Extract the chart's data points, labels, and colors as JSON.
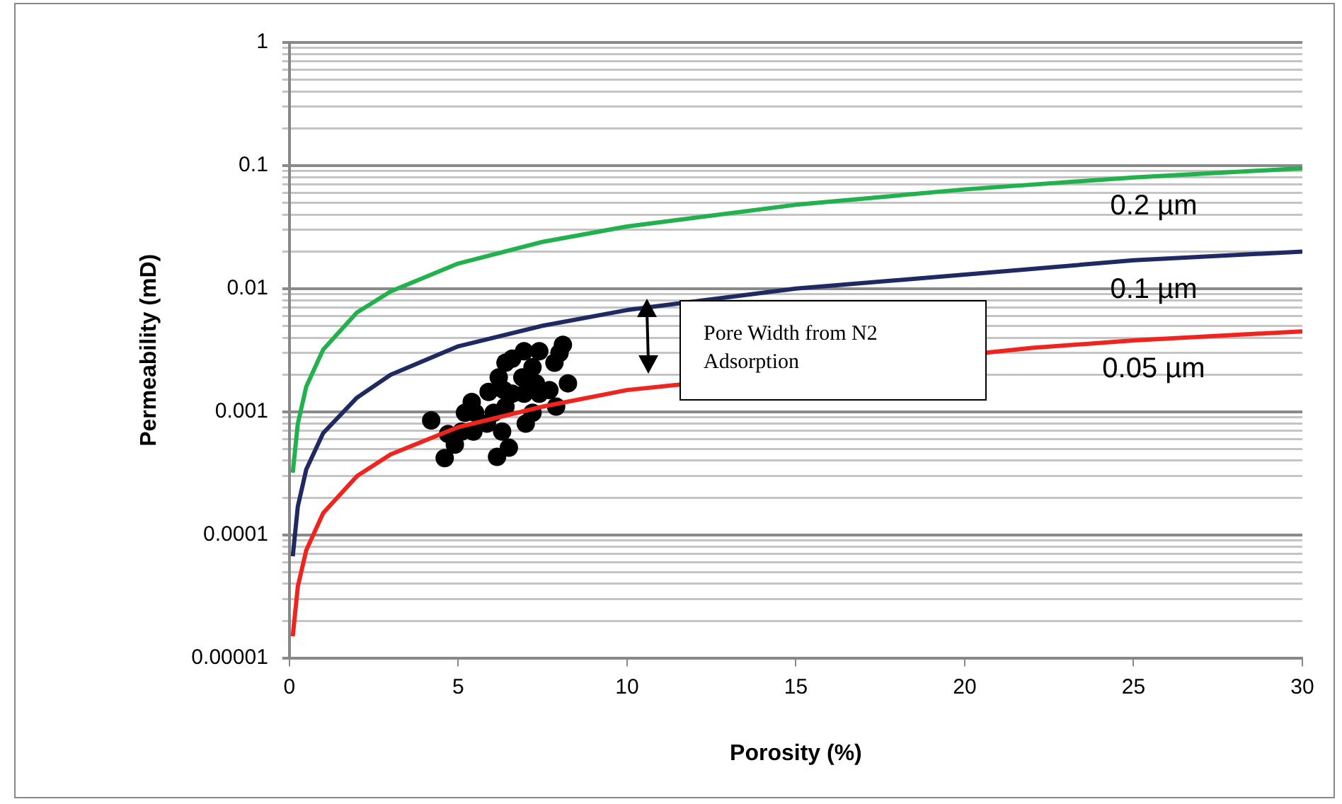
{
  "chart_data": {
    "type": "line",
    "xlabel": "Porosity (%)",
    "ylabel": "Permeability (mD)",
    "log": "y",
    "grid": "y",
    "legend": false,
    "xlim": [
      0,
      30
    ],
    "xticks": [
      0,
      5,
      10,
      15,
      20,
      25,
      30
    ],
    "ylim": [
      1e-05,
      1
    ],
    "yticks": [
      {
        "value": 1e-05,
        "label": "0.00001"
      },
      {
        "value": 2e-05,
        "label": null
      },
      {
        "value": 3e-05,
        "label": null
      },
      {
        "value": 4e-05,
        "label": null
      },
      {
        "value": 5e-05,
        "label": null
      },
      {
        "value": 6e-05,
        "label": null
      },
      {
        "value": 7e-05,
        "label": null
      },
      {
        "value": 8e-05,
        "label": null
      },
      {
        "value": 9e-05,
        "label": null
      },
      0.0001,
      {
        "value": 0.0002,
        "label": null
      },
      {
        "value": 0.0003,
        "label": null
      },
      {
        "value": 0.0004,
        "label": null
      },
      {
        "value": 0.0005,
        "label": null
      },
      {
        "value": 0.0006,
        "label": null
      },
      {
        "value": 0.0007,
        "label": null
      },
      {
        "value": 0.0008,
        "label": null
      },
      {
        "value": 0.0009,
        "label": null
      },
      0.001,
      {
        "value": 0.002,
        "label": null
      },
      {
        "value": 0.003,
        "label": null
      },
      {
        "value": 0.004,
        "label": null
      },
      {
        "value": 0.005,
        "label": null
      },
      {
        "value": 0.006,
        "label": null
      },
      {
        "value": 0.007,
        "label": null
      },
      {
        "value": 0.008,
        "label": null
      },
      {
        "value": 0.009,
        "label": null
      },
      0.01,
      {
        "value": 0.02,
        "label": null
      },
      {
        "value": 0.03,
        "label": null
      },
      {
        "value": 0.04,
        "label": null
      },
      {
        "value": 0.05,
        "label": null
      },
      {
        "value": 0.06,
        "label": null
      },
      {
        "value": 0.07,
        "label": null
      },
      {
        "value": 0.08,
        "label": null
      },
      {
        "value": 0.09,
        "label": null
      },
      0.1,
      {
        "value": 0.2,
        "label": null
      },
      {
        "value": 0.3,
        "label": null
      },
      {
        "value": 0.4,
        "label": null
      },
      {
        "value": 0.5,
        "label": null
      },
      {
        "value": 0.6,
        "label": null
      },
      {
        "value": 0.7,
        "label": null
      },
      {
        "value": 0.8,
        "label": null
      },
      {
        "value": 0.9,
        "label": null
      },
      1
    ],
    "annotations": [
      "Pore Width from N2 Adsorption"
    ],
    "series": [
      {
        "name": "0.2 µm",
        "color": "#22b14c",
        "x": [
          0.1,
          0.25,
          0.5,
          1,
          2,
          3,
          5,
          7.5,
          10,
          15,
          20,
          25,
          30
        ],
        "values": [
          0.00032,
          0.0008,
          0.0016,
          0.0032,
          0.0064,
          0.0095,
          0.016,
          0.024,
          0.032,
          0.048,
          0.064,
          0.08,
          0.095
        ]
      },
      {
        "name": "0.1 µm",
        "color": "#1f2a63",
        "x": [
          0.1,
          0.25,
          0.5,
          1,
          2,
          3,
          5,
          7.5,
          10,
          15,
          20,
          25,
          30
        ],
        "values": [
          6.7e-05,
          0.00017,
          0.00034,
          0.00067,
          0.0013,
          0.002,
          0.0034,
          0.005,
          0.0067,
          0.01,
          0.013,
          0.017,
          0.02
        ]
      },
      {
        "name": "0.05 µm",
        "color": "#f0241e",
        "x": [
          0.1,
          0.25,
          0.5,
          1,
          2,
          3,
          5,
          7.5,
          10,
          22,
          25,
          30
        ],
        "values": [
          1.5e-05,
          3.8e-05,
          7.5e-05,
          0.00015,
          0.0003,
          0.00045,
          0.00075,
          0.0011,
          0.0015,
          0.0033,
          0.0038,
          0.0045
        ]
      },
      {
        "type": "scatter",
        "color": "#000000",
        "marker": "circle",
        "x": [
          4.2,
          4.6,
          4.9,
          4.7,
          5.2,
          5.4,
          5.5,
          5.45,
          5.9,
          5.85,
          6.15,
          6.5,
          6.3,
          6.2,
          6.4,
          6.6,
          6.95,
          7.4,
          7.2,
          6.95,
          7.0,
          6.6,
          7.7,
          7.9,
          8.25,
          7.85,
          8.0,
          8.1,
          7.3,
          7.4,
          6.9,
          6.4,
          6.05,
          5.1,
          6.35,
          7.2
        ],
        "values": [
          0.00085,
          0.00042,
          0.00054,
          0.00066,
          0.00098,
          0.0012,
          0.00098,
          0.00069,
          0.00145,
          0.0008,
          0.00043,
          0.00051,
          0.00069,
          0.0019,
          0.0025,
          0.0027,
          0.0031,
          0.0031,
          0.0023,
          0.0014,
          0.0008,
          0.0014,
          0.0015,
          0.0011,
          0.0017,
          0.0025,
          0.003,
          0.0035,
          0.0017,
          0.0014,
          0.0019,
          0.0011,
          0.00098,
          0.00069,
          0.0015,
          0.00098
        ]
      }
    ]
  }
}
